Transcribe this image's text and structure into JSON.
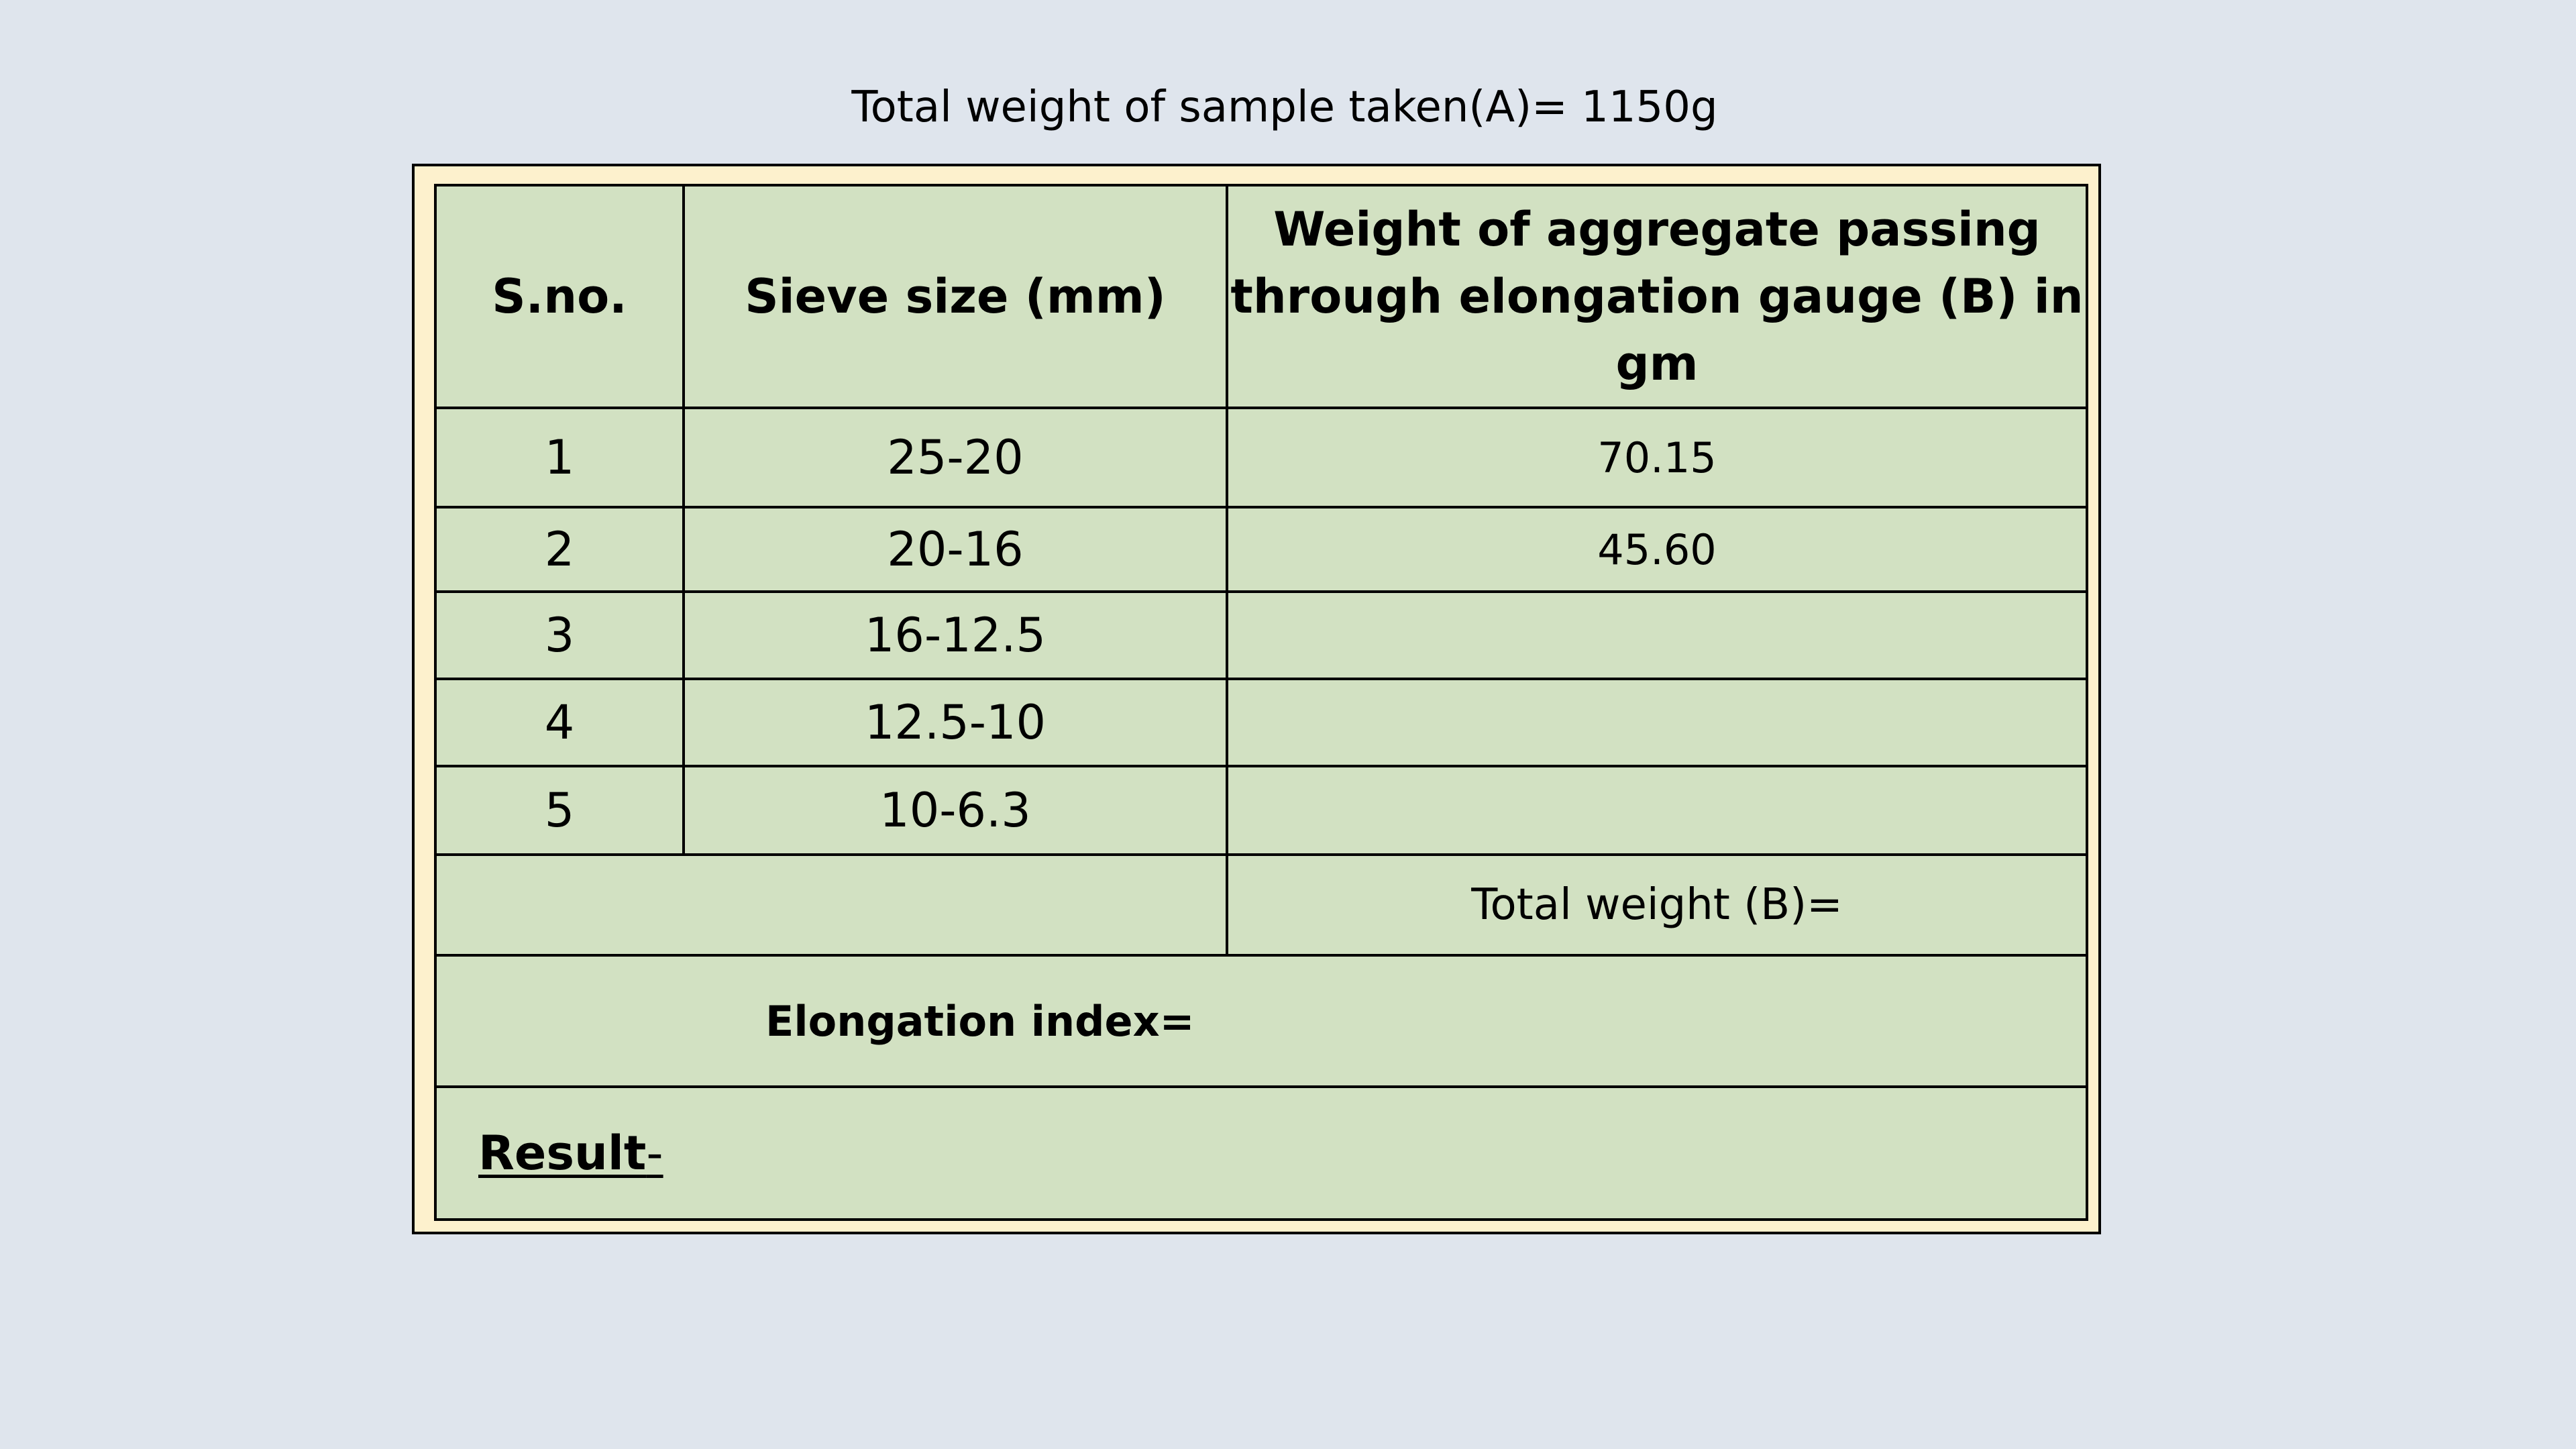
{
  "sample": {
    "title": "Total weight of sample taken(A)= 1150g"
  },
  "table": {
    "headers": {
      "sno": "S.no.",
      "sieve": "Sieve size (mm)",
      "weight_line1": "Weight of aggregate passing",
      "weight_line2": "through elongation gauge (B) in",
      "weight_line3": "gm"
    },
    "rows": [
      {
        "sno": "1",
        "sieve": "25-20",
        "weight": "70.15"
      },
      {
        "sno": "2",
        "sieve": "20-16",
        "weight": "45.60"
      },
      {
        "sno": "3",
        "sieve": "16-12.5",
        "weight": ""
      },
      {
        "sno": "4",
        "sieve": "12.5-10",
        "weight": ""
      },
      {
        "sno": "5",
        "sieve": "10-6.3",
        "weight": ""
      }
    ],
    "total_label": "Total weight (B)=",
    "elongation_label": "Elongation index=",
    "result_label": "Result",
    "result_dash": "-"
  },
  "colors": {
    "background": "#dfe5ed",
    "frame": "#fdf1cd",
    "table": "#d2e1c2"
  }
}
